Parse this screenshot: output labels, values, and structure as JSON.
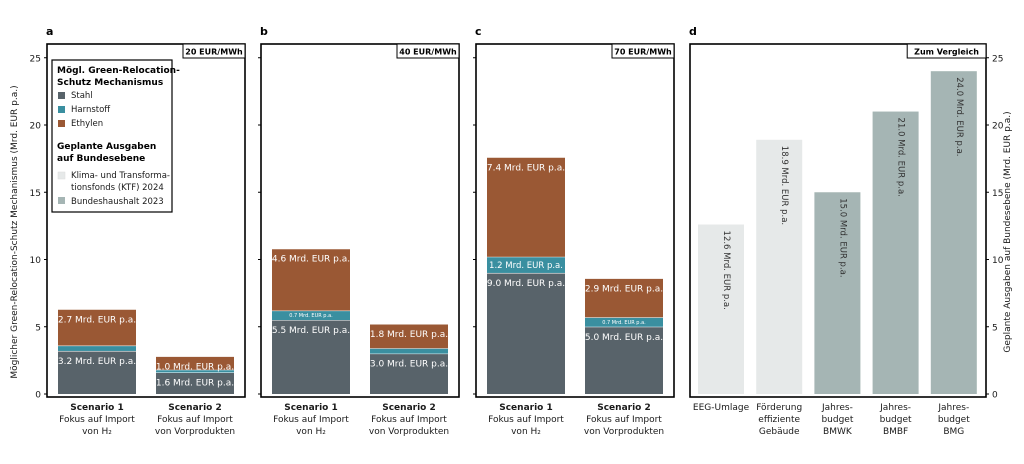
{
  "colors": {
    "stahl": "#58636a",
    "harnstoff": "#3a8fa0",
    "ethylen": "#9a5834",
    "ktf": "#e6e9e9",
    "bundeshaushalt": "#a5b5b4",
    "frame": "#000000",
    "text": "#1a1a1a"
  },
  "left_axis": {
    "label": "Möglicher Green-Relocation-Schutz Mechanismus (Mrd. EUR p.a.)"
  },
  "right_axis": {
    "label": "Geplante Ausgaben auf Bundesebene (Mrd. EUR p.a.)"
  },
  "legend": {
    "heading1": "Mögl. Green-Relocation-Schutz Mechanismus",
    "heading1_line1": "Mögl. Green-Relocation-",
    "heading1_line2": "Schutz Mechanismus",
    "items1": [
      {
        "label": "Stahl",
        "color": "#58636a"
      },
      {
        "label": "Harnstoff",
        "color": "#3a8fa0"
      },
      {
        "label": "Ethylen",
        "color": "#9a5834"
      }
    ],
    "heading2": "Geplante Ausgaben auf Bundesebene",
    "heading2_line1": "Geplante Ausgaben",
    "heading2_line2": "auf Bundesebene",
    "items2": [
      {
        "label": "Klima- und Transformationsfonds (KTF) 2024",
        "line1": "Klima- und Transforma-",
        "line2": "tionsfonds (KTF) 2024",
        "color": "#e6e9e9"
      },
      {
        "label": "Bundeshaushalt 2023",
        "color": "#a5b5b4"
      }
    ]
  },
  "chart_data": [
    {
      "type": "bar",
      "panel": "a",
      "price_label": "20 EUR/MWh",
      "ylim": [
        0,
        26
      ],
      "yticks": [
        0,
        5,
        10,
        15,
        20,
        25
      ],
      "categories": [
        "Scenario 1 Fokus auf Import von H2",
        "Scenario 2 Fokus auf Import von Vorprodukten"
      ],
      "category_lines": [
        [
          "Scenario 1",
          "Fokus auf Import",
          "von H₂"
        ],
        [
          "Scenario 2",
          "Fokus auf Import",
          "von Vorprodukten"
        ]
      ],
      "series": [
        {
          "name": "Stahl",
          "values": [
            3.2,
            1.6
          ],
          "labels": [
            "3.2 Mrd. EUR p.a.",
            "1.6 Mrd. EUR p.a."
          ]
        },
        {
          "name": "Harnstoff",
          "values": [
            0.4,
            0.2
          ],
          "labels": [
            "",
            ""
          ]
        },
        {
          "name": "Ethylen",
          "values": [
            2.7,
            1.0
          ],
          "labels": [
            "2.7 Mrd. EUR p.a.",
            "1.0 Mrd. EUR p.a."
          ]
        }
      ]
    },
    {
      "type": "bar",
      "panel": "b",
      "price_label": "40 EUR/MWh",
      "ylim": [
        0,
        26
      ],
      "yticks": [
        0,
        5,
        10,
        15,
        20,
        25
      ],
      "categories": [
        "Scenario 1 Fokus auf Import von H2",
        "Scenario 2 Fokus auf Import von Vorprodukten"
      ],
      "category_lines": [
        [
          "Scenario 1",
          "Fokus auf Import",
          "von H₂"
        ],
        [
          "Scenario 2",
          "Fokus auf Import",
          "von Vorprodukten"
        ]
      ],
      "series": [
        {
          "name": "Stahl",
          "values": [
            5.5,
            3.0
          ],
          "labels": [
            "5.5 Mrd. EUR p.a.",
            "3.0 Mrd. EUR p.a."
          ]
        },
        {
          "name": "Harnstoff",
          "values": [
            0.7,
            0.4
          ],
          "labels": [
            "0.7 Mrd. EUR p.a.",
            ""
          ]
        },
        {
          "name": "Ethylen",
          "values": [
            4.6,
            1.8
          ],
          "labels": [
            "4.6 Mrd. EUR p.a.",
            "1.8 Mrd. EUR p.a."
          ]
        }
      ]
    },
    {
      "type": "bar",
      "panel": "c",
      "price_label": "70 EUR/MWh",
      "ylim": [
        0,
        26
      ],
      "yticks": [
        0,
        5,
        10,
        15,
        20,
        25
      ],
      "categories": [
        "Scenario 1 Fokus auf Import von H2",
        "Scenario 2 Fokus auf Import von Vorprodukten"
      ],
      "category_lines": [
        [
          "Scenario 1",
          "Fokus auf Import",
          "von H₂"
        ],
        [
          "Scenario 2",
          "Fokus auf Import",
          "von Vorprodukten"
        ]
      ],
      "series": [
        {
          "name": "Stahl",
          "values": [
            9.0,
            5.0
          ],
          "labels": [
            "9.0 Mrd. EUR p.a.",
            "5.0 Mrd. EUR p.a."
          ]
        },
        {
          "name": "Harnstoff",
          "values": [
            1.2,
            0.7
          ],
          "labels": [
            "1.2 Mrd. EUR p.a.",
            "0.7 Mrd. EUR p.a."
          ]
        },
        {
          "name": "Ethylen",
          "values": [
            7.4,
            2.9
          ],
          "labels": [
            "7.4 Mrd. EUR p.a.",
            "2.9 Mrd. EUR p.a."
          ]
        }
      ]
    },
    {
      "type": "bar",
      "panel": "d",
      "price_label": "Zum Vergleich",
      "ylim": [
        0,
        26
      ],
      "yticks": [
        0,
        5,
        10,
        15,
        20,
        25
      ],
      "categories": [
        "EEG-Umlage",
        "Förderung effiziente Gebäude",
        "Jahresbudget BMWK",
        "Jahresbudget BMBF",
        "Jahresbudget BMG"
      ],
      "category_lines": [
        [
          "EEG-Umlage"
        ],
        [
          "Förderung",
          "effiziente",
          "Gebäude"
        ],
        [
          "Jahres-",
          "budget",
          "BMWK"
        ],
        [
          "Jahres-",
          "budget",
          "BMBF"
        ],
        [
          "Jahres-",
          "budget",
          "BMG"
        ]
      ],
      "values": [
        12.6,
        18.9,
        15.0,
        21.0,
        24.0
      ],
      "labels": [
        "12.6 Mrd. EUR p.a.",
        "18.9 Mrd. EUR p.a.",
        "15.0 Mrd. EUR p.a.",
        "21.0 Mrd. EUR p.a.",
        "24.0 Mrd. EUR p.a."
      ],
      "groups": [
        "Klima- und Transformationsfonds (KTF) 2024",
        "Klima- und Transformationsfonds (KTF) 2024",
        "Bundeshaushalt 2023",
        "Bundeshaushalt 2023",
        "Bundeshaushalt 2023"
      ]
    }
  ]
}
